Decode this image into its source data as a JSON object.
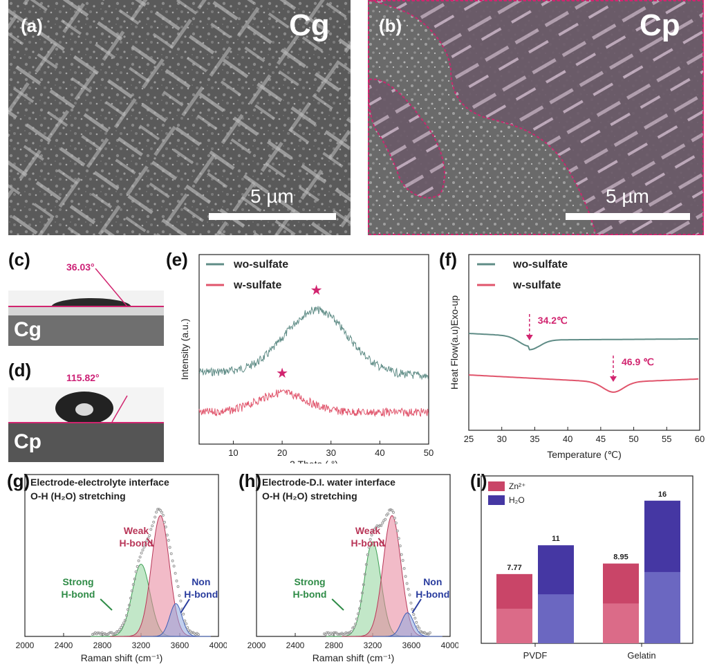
{
  "panels": {
    "a": {
      "label": "(a)",
      "title": "Cg",
      "scale": "5 µm"
    },
    "b": {
      "label": "(b)",
      "title": "Cp",
      "scale": "5 µm"
    },
    "c": {
      "label": "(c)",
      "angle": "36.03°",
      "name": "Cg"
    },
    "d": {
      "label": "(d)",
      "angle": "115.82°",
      "name": "Cp"
    },
    "e": {
      "label": "(e)"
    },
    "f": {
      "label": "(f)"
    },
    "g": {
      "label": "(g)"
    },
    "h": {
      "label": "(h)"
    },
    "i": {
      "label": "(i)"
    }
  },
  "colors": {
    "teal": "#5f8c86",
    "pink": "#e0546b",
    "magenta": "#d1246f",
    "purple": "#4a3ea8",
    "crimson": "#b83557"
  },
  "chart_data": [
    {
      "id": "e",
      "type": "line",
      "title": "",
      "xlabel": "2 Theta ( °)",
      "ylabel": "Intensity (a.u.)",
      "xlim": [
        3,
        50
      ],
      "xticks": [
        "10",
        "20",
        "30",
        "40",
        "50"
      ],
      "legend": [
        "wo-sulfate",
        "w-sulfate"
      ],
      "series": [
        {
          "name": "wo-sulfate",
          "peak_2theta": 27,
          "note": "broad amorphous hump"
        },
        {
          "name": "w-sulfate",
          "peak_2theta": 20,
          "note": "broad amorphous hump"
        }
      ],
      "annotations": [
        "★",
        "★"
      ]
    },
    {
      "id": "f",
      "type": "line",
      "xlabel": "Temperature (℃)",
      "ylabel": "Heat Flow(a.u)Exo-up",
      "xlim": [
        25,
        60
      ],
      "xticks": [
        "25",
        "30",
        "35",
        "40",
        "45",
        "50",
        "55",
        "60"
      ],
      "legend": [
        "wo-sulfate",
        "w-sulfate"
      ],
      "series": [
        {
          "name": "wo-sulfate",
          "transition_C": 34.2,
          "label": "34.2℃"
        },
        {
          "name": "w-sulfate",
          "transition_C": 46.9,
          "label": "46.9 ℃"
        }
      ]
    },
    {
      "id": "g",
      "type": "area",
      "title_lines": [
        "Electrode-electrolyte interface",
        "O-H (H₂O) stretching"
      ],
      "xlabel": "Raman shift (cm⁻¹)",
      "xlim": [
        2000,
        4000
      ],
      "xticks": [
        "2000",
        "2400",
        "2800",
        "3200",
        "3600",
        "4000"
      ],
      "components": [
        {
          "name": "Strong H-bond",
          "center": 3200,
          "height": 0.55,
          "width": 130
        },
        {
          "name": "Weak H-bond",
          "center": 3400,
          "height": 0.92,
          "width": 130
        },
        {
          "name": "Non H-bond",
          "center": 3560,
          "height": 0.25,
          "width": 90
        }
      ],
      "labels": {
        "weak": [
          "Weak",
          "H-bond"
        ],
        "strong": [
          "Strong",
          "H-bond"
        ],
        "non": [
          "Non",
          "H-bond"
        ]
      }
    },
    {
      "id": "h",
      "type": "area",
      "title_lines": [
        "Electrode-D.I. water interface",
        "O-H (H₂O) stretching"
      ],
      "xlabel": "Raman shift (cm⁻¹)",
      "xlim": [
        2000,
        4000
      ],
      "xticks": [
        "2000",
        "2400",
        "2800",
        "3200",
        "3600",
        "4000"
      ],
      "components": [
        {
          "name": "Strong H-bond",
          "center": 3200,
          "height": 0.72,
          "width": 120
        },
        {
          "name": "Weak H-bond",
          "center": 3400,
          "height": 0.92,
          "width": 130
        },
        {
          "name": "Non H-bond",
          "center": 3560,
          "height": 0.18,
          "width": 90
        }
      ],
      "labels": {
        "weak": [
          "Weak",
          "H-bond"
        ],
        "strong": [
          "Strong",
          "H-bond"
        ],
        "non": [
          "Non",
          "H-bond"
        ]
      }
    },
    {
      "id": "i",
      "type": "bar",
      "categories": [
        "PVDF",
        "Gelatin"
      ],
      "series": [
        {
          "name": "Zn²⁺",
          "values": [
            7.77,
            8.95
          ],
          "labels": [
            "7.77",
            "8.95"
          ]
        },
        {
          "name": "H₂O",
          "values": [
            11,
            16
          ],
          "labels": [
            "11",
            "16"
          ]
        }
      ],
      "ylim": [
        0,
        18
      ]
    }
  ]
}
